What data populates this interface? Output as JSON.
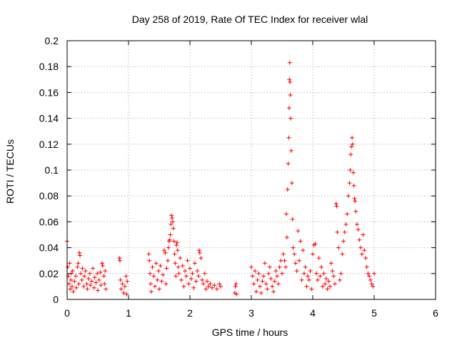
{
  "chart_data": {
    "type": "scatter",
    "title": "Day 258 of 2019, Rate Of TEC Index for receiver wlal",
    "xlabel": "GPS time / hours",
    "ylabel": "ROTI / TECUs",
    "xlim": [
      0,
      6
    ],
    "ylim": [
      0,
      0.2
    ],
    "x_ticks": [
      0,
      1,
      2,
      3,
      4,
      5,
      6
    ],
    "x_tick_labels": [
      "0",
      "1",
      "2",
      "3",
      "4",
      "5",
      "6"
    ],
    "y_ticks": [
      0,
      0.02,
      0.04,
      0.06,
      0.08,
      0.1,
      0.12,
      0.14,
      0.16,
      0.18,
      0.2
    ],
    "y_tick_labels": [
      "0",
      "0.02",
      "0.04",
      "0.06",
      "0.08",
      "0.1",
      "0.12",
      "0.14",
      "0.16",
      "0.18",
      "0.2"
    ],
    "grid": true,
    "marker": "+",
    "color": "#ff0000",
    "series": [
      {
        "name": "ROTI",
        "points": [
          [
            0.0,
            0.045
          ],
          [
            0.01,
            0.025
          ],
          [
            0.02,
            0.018
          ],
          [
            0.03,
            0.012
          ],
          [
            0.04,
            0.028
          ],
          [
            0.05,
            0.008
          ],
          [
            0.06,
            0.015
          ],
          [
            0.07,
            0.02
          ],
          [
            0.08,
            0.01
          ],
          [
            0.09,
            0.022
          ],
          [
            0.1,
            0.006
          ],
          [
            0.12,
            0.014
          ],
          [
            0.14,
            0.018
          ],
          [
            0.15,
            0.009
          ],
          [
            0.17,
            0.025
          ],
          [
            0.18,
            0.028
          ],
          [
            0.19,
            0.012
          ],
          [
            0.2,
            0.036
          ],
          [
            0.21,
            0.034
          ],
          [
            0.22,
            0.02
          ],
          [
            0.24,
            0.015
          ],
          [
            0.25,
            0.024
          ],
          [
            0.27,
            0.01
          ],
          [
            0.28,
            0.018
          ],
          [
            0.3,
            0.022
          ],
          [
            0.32,
            0.012
          ],
          [
            0.33,
            0.008
          ],
          [
            0.35,
            0.016
          ],
          [
            0.37,
            0.02
          ],
          [
            0.38,
            0.011
          ],
          [
            0.4,
            0.014
          ],
          [
            0.42,
            0.024
          ],
          [
            0.44,
            0.009
          ],
          [
            0.45,
            0.017
          ],
          [
            0.47,
            0.013
          ],
          [
            0.49,
            0.02
          ],
          [
            0.5,
            0.007
          ],
          [
            0.52,
            0.015
          ],
          [
            0.54,
            0.021
          ],
          [
            0.55,
            0.011
          ],
          [
            0.57,
            0.028
          ],
          [
            0.58,
            0.026
          ],
          [
            0.6,
            0.018
          ],
          [
            0.61,
            0.012
          ],
          [
            0.62,
            0.022
          ],
          [
            0.63,
            0.008
          ],
          [
            0.85,
            0.032
          ],
          [
            0.86,
            0.03
          ],
          [
            0.87,
            0.015
          ],
          [
            0.88,
            0.008
          ],
          [
            0.9,
            0.012
          ],
          [
            0.92,
            0.005
          ],
          [
            0.94,
            0.01
          ],
          [
            0.96,
            0.018
          ],
          [
            0.97,
            0.004
          ],
          [
            0.98,
            0.014
          ],
          [
            1.33,
            0.035
          ],
          [
            1.34,
            0.03
          ],
          [
            1.35,
            0.02
          ],
          [
            1.36,
            0.012
          ],
          [
            1.37,
            0.006
          ],
          [
            1.39,
            0.025
          ],
          [
            1.41,
            0.018
          ],
          [
            1.43,
            0.01
          ],
          [
            1.45,
            0.028
          ],
          [
            1.47,
            0.015
          ],
          [
            1.49,
            0.022
          ],
          [
            1.5,
            0.008
          ],
          [
            1.52,
            0.026
          ],
          [
            1.54,
            0.014
          ],
          [
            1.56,
            0.019
          ],
          [
            1.58,
            0.038
          ],
          [
            1.6,
            0.036
          ],
          [
            1.61,
            0.012
          ],
          [
            1.62,
            0.024
          ],
          [
            1.64,
            0.03
          ],
          [
            1.65,
            0.04
          ],
          [
            1.66,
            0.045
          ],
          [
            1.67,
            0.046
          ],
          [
            1.68,
            0.05
          ],
          [
            1.69,
            0.058
          ],
          [
            1.7,
            0.065
          ],
          [
            1.71,
            0.063
          ],
          [
            1.72,
            0.06
          ],
          [
            1.73,
            0.055
          ],
          [
            1.74,
            0.045
          ],
          [
            1.75,
            0.035
          ],
          [
            1.76,
            0.028
          ],
          [
            1.77,
            0.018
          ],
          [
            1.78,
            0.042
          ],
          [
            1.79,
            0.044
          ],
          [
            1.8,
            0.038
          ],
          [
            1.81,
            0.025
          ],
          [
            1.82,
            0.02
          ],
          [
            1.84,
            0.032
          ],
          [
            1.86,
            0.015
          ],
          [
            1.88,
            0.026
          ],
          [
            1.9,
            0.01
          ],
          [
            1.92,
            0.022
          ],
          [
            1.94,
            0.018
          ],
          [
            1.96,
            0.03
          ],
          [
            1.98,
            0.012
          ],
          [
            2.0,
            0.024
          ],
          [
            2.02,
            0.016
          ],
          [
            2.04,
            0.02
          ],
          [
            2.06,
            0.009
          ],
          [
            2.08,
            0.028
          ],
          [
            2.1,
            0.014
          ],
          [
            2.12,
            0.022
          ],
          [
            2.14,
            0.018
          ],
          [
            2.15,
            0.038
          ],
          [
            2.16,
            0.036
          ],
          [
            2.18,
            0.032
          ],
          [
            2.2,
            0.015
          ],
          [
            2.22,
            0.012
          ],
          [
            2.24,
            0.02
          ],
          [
            2.26,
            0.008
          ],
          [
            2.28,
            0.014
          ],
          [
            2.3,
            0.01
          ],
          [
            2.33,
            0.012
          ],
          [
            2.36,
            0.009
          ],
          [
            2.4,
            0.011
          ],
          [
            2.44,
            0.008
          ],
          [
            2.48,
            0.012
          ],
          [
            2.5,
            0.01
          ],
          [
            2.73,
            0.005
          ],
          [
            2.74,
            0.01
          ],
          [
            2.75,
            0.012
          ],
          [
            2.76,
            0.004
          ],
          [
            3.0,
            0.025
          ],
          [
            3.02,
            0.018
          ],
          [
            3.04,
            0.012
          ],
          [
            3.06,
            0.022
          ],
          [
            3.08,
            0.006
          ],
          [
            3.1,
            0.015
          ],
          [
            3.12,
            0.02
          ],
          [
            3.14,
            0.01
          ],
          [
            3.16,
            0.005
          ],
          [
            3.18,
            0.014
          ],
          [
            3.2,
            0.018
          ],
          [
            3.22,
            0.028
          ],
          [
            3.24,
            0.012
          ],
          [
            3.26,
            0.008
          ],
          [
            3.28,
            0.02
          ],
          [
            3.3,
            0.025
          ],
          [
            3.32,
            0.016
          ],
          [
            3.34,
            0.01
          ],
          [
            3.36,
            0.006
          ],
          [
            3.38,
            0.014
          ],
          [
            3.4,
            0.022
          ],
          [
            3.42,
            0.018
          ],
          [
            3.44,
            0.012
          ],
          [
            3.46,
            0.025
          ],
          [
            3.48,
            0.03
          ],
          [
            3.5,
            0.02
          ],
          [
            3.52,
            0.035
          ],
          [
            3.54,
            0.03
          ],
          [
            3.56,
            0.025
          ],
          [
            3.57,
            0.066
          ],
          [
            3.58,
            0.048
          ],
          [
            3.59,
            0.085
          ],
          [
            3.6,
            0.105
          ],
          [
            3.61,
            0.125
          ],
          [
            3.615,
            0.148
          ],
          [
            3.62,
            0.17
          ],
          [
            3.625,
            0.183
          ],
          [
            3.63,
            0.168
          ],
          [
            3.635,
            0.158
          ],
          [
            3.64,
            0.14
          ],
          [
            3.65,
            0.115
          ],
          [
            3.66,
            0.09
          ],
          [
            3.67,
            0.062
          ],
          [
            3.68,
            0.04
          ],
          [
            3.7,
            0.035
          ],
          [
            3.72,
            0.028
          ],
          [
            3.74,
            0.022
          ],
          [
            3.76,
            0.053
          ],
          [
            3.78,
            0.03
          ],
          [
            3.8,
            0.045
          ],
          [
            3.82,
            0.015
          ],
          [
            3.84,
            0.038
          ],
          [
            3.86,
            0.02
          ],
          [
            3.88,
            0.025
          ],
          [
            3.9,
            0.01
          ],
          [
            3.92,
            0.018
          ],
          [
            3.94,
            0.015
          ],
          [
            3.96,
            0.022
          ],
          [
            3.98,
            0.008
          ],
          [
            4.0,
            0.035
          ],
          [
            4.02,
            0.042
          ],
          [
            4.04,
            0.043
          ],
          [
            4.06,
            0.02
          ],
          [
            4.08,
            0.015
          ],
          [
            4.1,
            0.032
          ],
          [
            4.12,
            0.018
          ],
          [
            4.14,
            0.025
          ],
          [
            4.16,
            0.01
          ],
          [
            4.18,
            0.02
          ],
          [
            4.2,
            0.012
          ],
          [
            4.22,
            0.016
          ],
          [
            4.24,
            0.008
          ],
          [
            4.26,
            0.014
          ],
          [
            4.28,
            0.01
          ],
          [
            4.3,
            0.028
          ],
          [
            4.32,
            0.022
          ],
          [
            4.34,
            0.018
          ],
          [
            4.36,
            0.012
          ],
          [
            4.38,
            0.074
          ],
          [
            4.39,
            0.072
          ],
          [
            4.4,
            0.052
          ],
          [
            4.42,
            0.04
          ],
          [
            4.44,
            0.015
          ],
          [
            4.46,
            0.02
          ],
          [
            4.48,
            0.035
          ],
          [
            4.5,
            0.045
          ],
          [
            4.52,
            0.052
          ],
          [
            4.54,
            0.058
          ],
          [
            4.56,
            0.066
          ],
          [
            4.58,
            0.08
          ],
          [
            4.6,
            0.09
          ],
          [
            4.61,
            0.1
          ],
          [
            4.62,
            0.112
          ],
          [
            4.63,
            0.118
          ],
          [
            4.64,
            0.125
          ],
          [
            4.65,
            0.12
          ],
          [
            4.66,
            0.098
          ],
          [
            4.67,
            0.088
          ],
          [
            4.68,
            0.078
          ],
          [
            4.69,
            0.076
          ],
          [
            4.7,
            0.068
          ],
          [
            4.72,
            0.058
          ],
          [
            4.74,
            0.054
          ],
          [
            4.76,
            0.046
          ],
          [
            4.78,
            0.04
          ],
          [
            4.8,
            0.035
          ],
          [
            4.82,
            0.05
          ],
          [
            4.84,
            0.038
          ],
          [
            4.86,
            0.032
          ],
          [
            4.88,
            0.025
          ],
          [
            4.9,
            0.02
          ],
          [
            4.92,
            0.018
          ],
          [
            4.94,
            0.015
          ],
          [
            4.96,
            0.012
          ],
          [
            4.98,
            0.01
          ],
          [
            5.0,
            0.02
          ]
        ]
      }
    ]
  }
}
